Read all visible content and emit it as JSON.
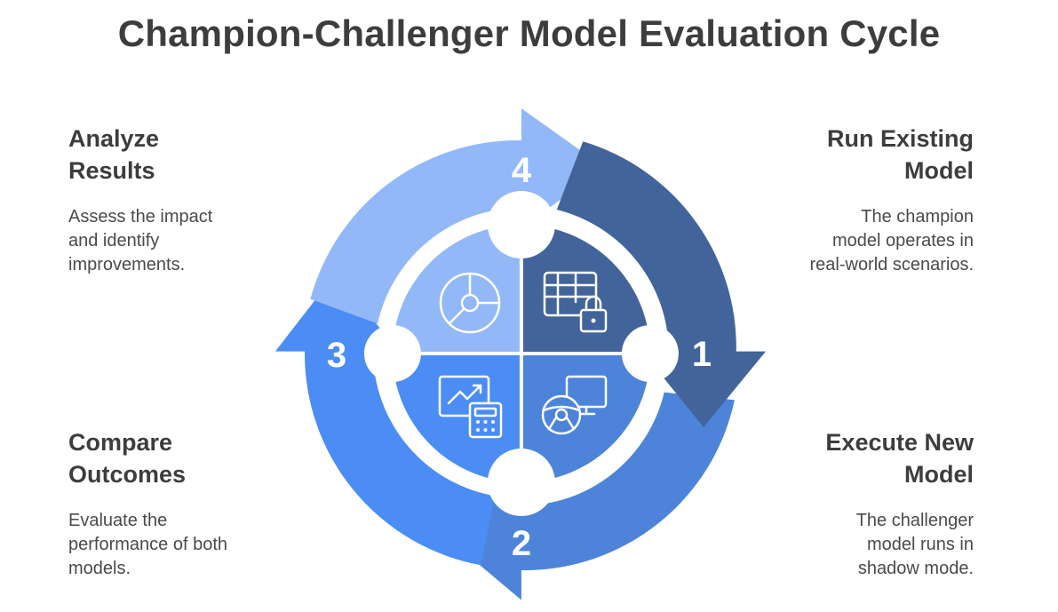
{
  "title": "Champion-Challenger Model Evaluation Cycle",
  "steps": [
    {
      "number": "1",
      "title_line1": "Run Existing",
      "title_line2": "Model",
      "desc_line1": "The champion",
      "desc_line2": "model operates in",
      "desc_line3": "real-world scenarios.",
      "color": "#42649b",
      "icon": "locked-table-icon"
    },
    {
      "number": "2",
      "title_line1": "Execute New",
      "title_line2": "Model",
      "desc_line1": "The challenger",
      "desc_line2": "model runs in",
      "desc_line3": "shadow mode.",
      "color": "#4d84da",
      "icon": "steering-wheel-monitor-icon"
    },
    {
      "number": "3",
      "title_line1": "Compare",
      "title_line2": "Outcomes",
      "desc_line1": "Evaluate the",
      "desc_line2": "performance of both",
      "desc_line3": "models.",
      "color": "#4b8df5",
      "icon": "chart-calculator-icon"
    },
    {
      "number": "4",
      "title_line1": "Analyze",
      "title_line2": "Results",
      "desc_line1": "Assess the impact",
      "desc_line2": "and identify",
      "desc_line3": "improvements.",
      "color": "#93b8f8",
      "icon": "pie-chart-icon"
    }
  ]
}
